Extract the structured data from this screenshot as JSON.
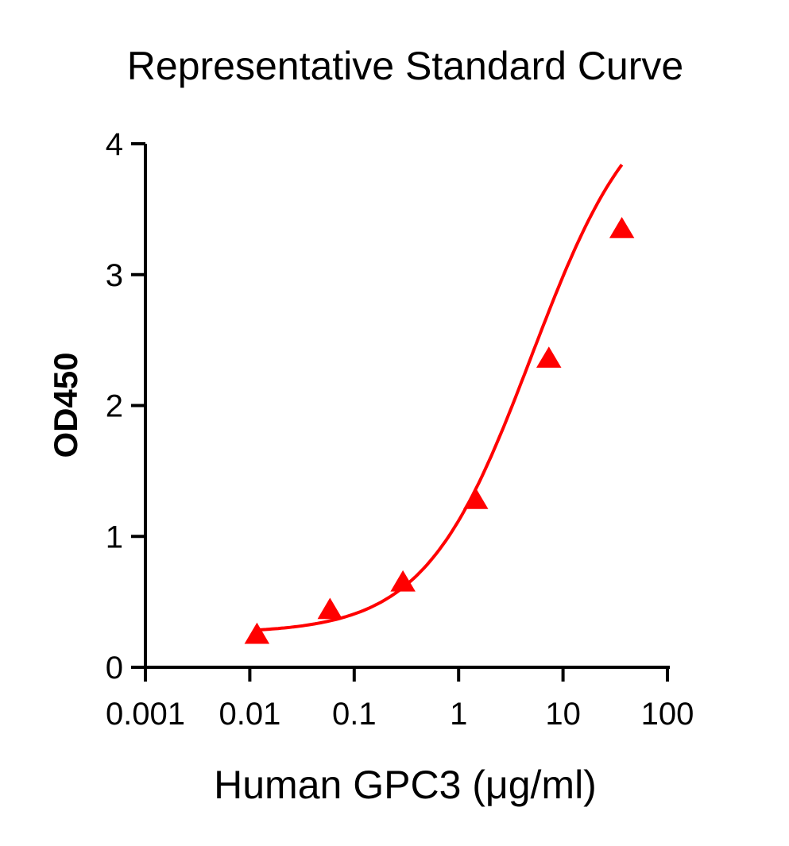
{
  "chart_data": {
    "type": "scatter",
    "title": "Representative Standard Curve",
    "xlabel": "Human GPC3 (μg/ml)",
    "ylabel": "OD450",
    "x_scale": "log",
    "xlim": [
      0.001,
      100
    ],
    "ylim": [
      0,
      4
    ],
    "x_ticks": [
      "0.001",
      "0.01",
      "0.1",
      "1",
      "10",
      "100"
    ],
    "y_ticks": [
      "0",
      "1",
      "2",
      "3",
      "4"
    ],
    "grid": false,
    "legend": "none",
    "series": [
      {
        "marker": "triangle",
        "color": "#ff0000",
        "x": [
          0.0117,
          0.0586,
          0.293,
          1.46,
          7.32,
          36.6
        ],
        "y": [
          0.25,
          0.44,
          0.65,
          1.28,
          2.36,
          3.35
        ],
        "fit": "4PL",
        "fit_params": {
          "bottom": 0.26,
          "top": 4.5,
          "ec50": 5.0,
          "hill": 0.85
        }
      }
    ]
  }
}
